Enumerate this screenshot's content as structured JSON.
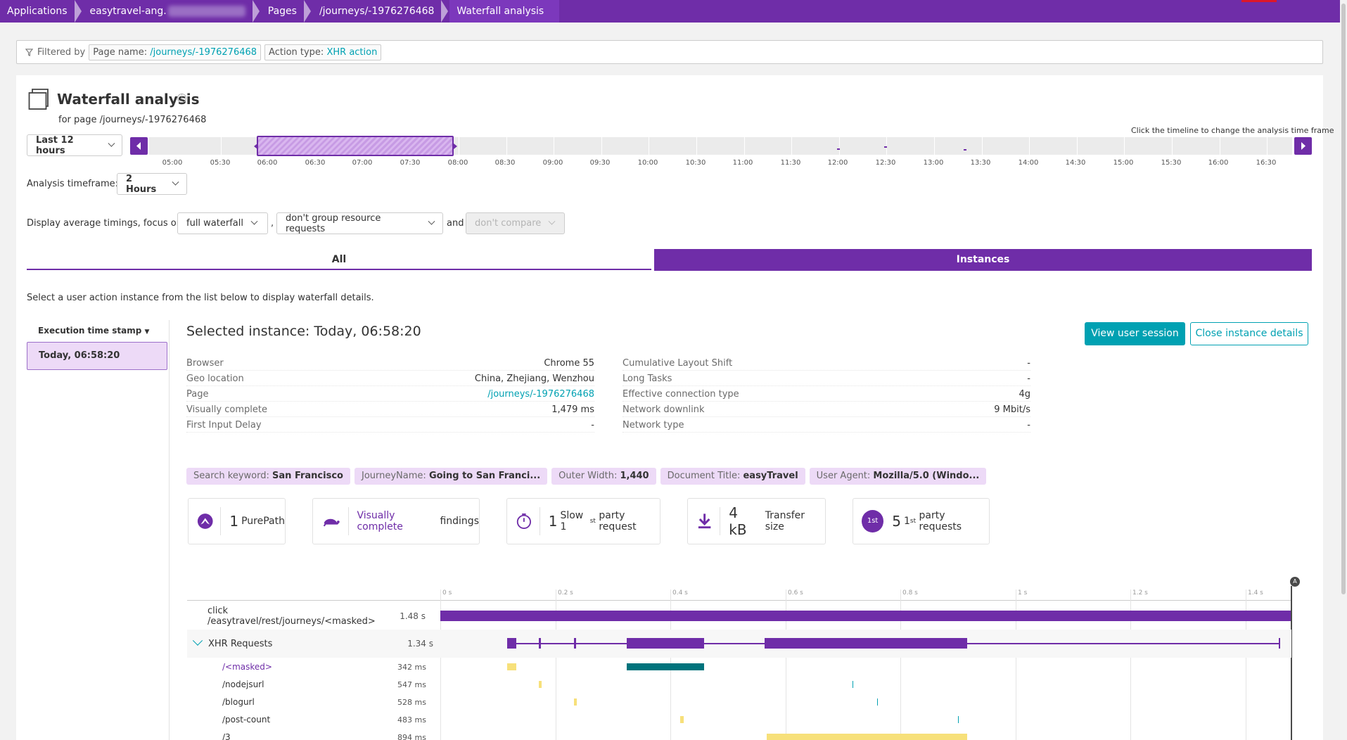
{
  "breadcrumb": {
    "items": [
      "Applications",
      "easytravel-ang.",
      "Pages",
      "/journeys/-1976276468",
      "Waterfall analysis"
    ]
  },
  "filter": {
    "label": "Filtered by",
    "chips": [
      {
        "key": "Page name:",
        "value": "/journeys/-1976276468"
      },
      {
        "key": "Action type:",
        "value": "XHR action"
      }
    ]
  },
  "header": {
    "title": "Waterfall analysis",
    "subtitle": "for page /journeys/-1976276468",
    "timeline_hint": "Click the timeline to change the analysis time frame"
  },
  "timeframe": {
    "range_select": "Last 12 hours",
    "ticks": [
      "05:00",
      "05:30",
      "06:00",
      "06:30",
      "07:00",
      "07:30",
      "08:00",
      "08:30",
      "09:00",
      "09:30",
      "10:00",
      "10:30",
      "11:00",
      "11:30",
      "12:00",
      "12:30",
      "13:00",
      "13:30",
      "14:00",
      "14:30",
      "15:00",
      "15:30",
      "16:00",
      "16:30"
    ],
    "analysis_label": "Analysis timeframe:",
    "analysis_value": "2 Hours"
  },
  "display": {
    "prefix": "Display average timings, focus on",
    "focus": "full waterfall",
    "comma": ",",
    "grouping": "don't group resource requests",
    "and": "and",
    "compare": "don't compare"
  },
  "tabs": [
    "All",
    "Instances"
  ],
  "instructions": "Select a user action instance from the list below to display waterfall details.",
  "instance_list": {
    "header": "Execution time stamp",
    "items": [
      "Today, 06:58:20"
    ]
  },
  "instance": {
    "title": "Selected instance: Today, 06:58:20",
    "view_session": "View user session",
    "close_details": "Close instance details",
    "left_props": [
      {
        "k": "Browser",
        "v": "Chrome 55"
      },
      {
        "k": "Geo location",
        "v": "China, Zhejiang, Wenzhou"
      },
      {
        "k": "Page",
        "v": "/journeys/-1976276468"
      },
      {
        "k": "Visually complete",
        "v": "1,479 ms"
      },
      {
        "k": "First Input Delay",
        "v": "-"
      }
    ],
    "right_props": [
      {
        "k": "Cumulative Layout Shift",
        "v": "-"
      },
      {
        "k": "Long Tasks",
        "v": "-"
      },
      {
        "k": "Effective connection type",
        "v": "4g"
      },
      {
        "k": "Network downlink",
        "v": "9 Mbit/s"
      },
      {
        "k": "Network type",
        "v": "-"
      }
    ],
    "tags": [
      {
        "k": "Search keyword:",
        "v": "San Francisco"
      },
      {
        "k": "JourneyName:",
        "v": "Going to San Franci..."
      },
      {
        "k": "Outer Width:",
        "v": "1,440"
      },
      {
        "k": "Document Title:",
        "v": "easyTravel"
      },
      {
        "k": "User Agent:",
        "v": "Mozilla/5.0 (Windo..."
      }
    ]
  },
  "cards": {
    "purepath": {
      "num": "1",
      "label": "PurePath"
    },
    "visually": {
      "link": "Visually complete",
      "label": "findings"
    },
    "slow": {
      "num": "1",
      "label1": "Slow 1",
      "sup": "st",
      "label2": "party request"
    },
    "transfer": {
      "num": "4 kB",
      "label": "Transfer size"
    },
    "firstparty": {
      "badge": "1st",
      "num": "5",
      "label1": "1",
      "sup": "st",
      "label2": "party requests"
    }
  },
  "waterfall": {
    "axis": [
      "0 s",
      "0.2 s",
      "0.4 s",
      "0.6 s",
      "0.8 s",
      "1 s",
      "1.2 s",
      "1.4 s"
    ],
    "marker": "A",
    "action": {
      "name": "click /easytravel/rest/journeys/<masked>",
      "duration": "1.48 s"
    },
    "group": {
      "name": "XHR Requests",
      "duration": "1.34 s"
    },
    "requests": [
      {
        "name": "/<masked>",
        "duration": "342 ms"
      },
      {
        "name": "/nodejsurl",
        "duration": "547 ms"
      },
      {
        "name": "/blogurl",
        "duration": "528 ms"
      },
      {
        "name": "/post-count",
        "duration": "483 ms"
      },
      {
        "name": "/3",
        "duration": "894 ms"
      }
    ]
  },
  "colors": {
    "brand": "#6f2da8",
    "teal": "#00a1b2",
    "instance_bg": "#eddaf7"
  }
}
